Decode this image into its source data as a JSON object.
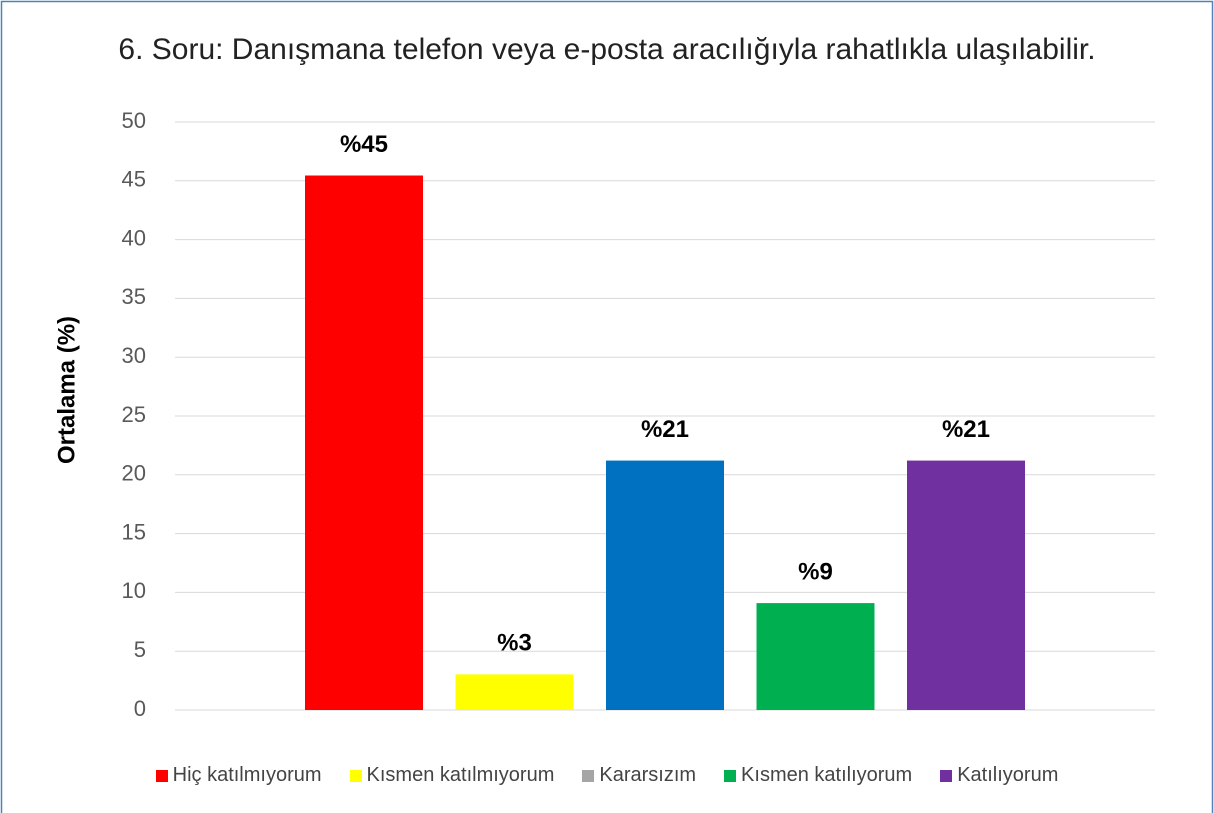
{
  "chart_data": {
    "type": "bar",
    "title": "6. Soru: Danışmana telefon veya e-posta aracılığıyla rahatlıkla ulaşılabilir.",
    "y_label": "Ortalama (%)",
    "series": [
      {
        "name": "Hiç katılmıyorum",
        "color": "#ff0000",
        "values": [
          45.45
        ],
        "value_labels": [
          "%45"
        ]
      },
      {
        "name": "Kısmen katılmıyorum",
        "color": "#ffff00",
        "values": [
          3.03
        ],
        "value_labels": [
          "%3"
        ]
      },
      {
        "name": "Kararsızım",
        "color": "#0070c0",
        "legend_color": "#a5a5a5",
        "values": [
          21.21
        ],
        "value_labels": [
          "%21"
        ]
      },
      {
        "name": "Kısmen katılıyorum",
        "color": "#00b050",
        "values": [
          9.09
        ],
        "value_labels": [
          "%9"
        ]
      },
      {
        "name": "Katılıyorum",
        "color": "#7030a0",
        "values": [
          21.21
        ],
        "value_labels": [
          "%21"
        ]
      }
    ],
    "ylim": [
      0,
      50
    ],
    "yticks": [
      0,
      5,
      10,
      15,
      20,
      25,
      30,
      35,
      40,
      45,
      50
    ],
    "grid": true,
    "legend": "bottom"
  }
}
